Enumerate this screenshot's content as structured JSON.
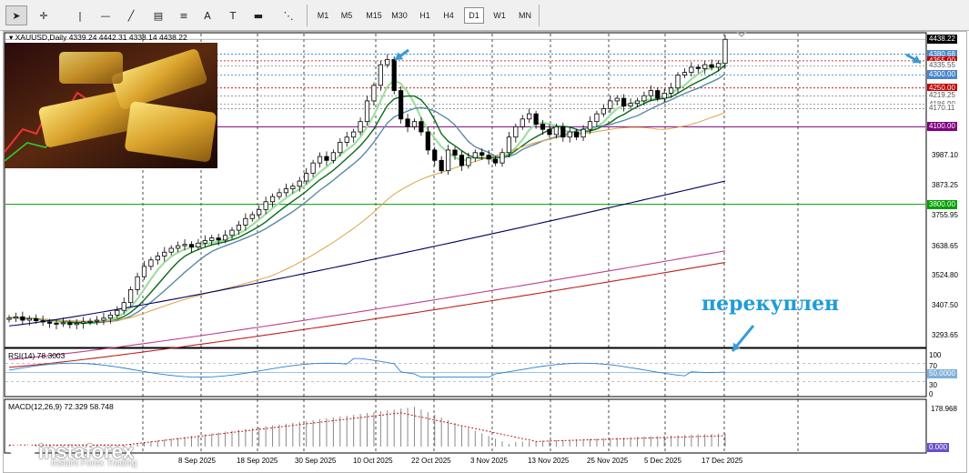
{
  "toolbar": {
    "tools": [
      {
        "name": "cursor-icon",
        "glyph": "➤"
      },
      {
        "name": "crosshair-icon",
        "glyph": "✛"
      },
      {
        "name": "vertical-line-icon",
        "glyph": "|"
      },
      {
        "name": "horizontal-line-icon",
        "glyph": "—"
      },
      {
        "name": "trendline-icon",
        "glyph": "╱"
      },
      {
        "name": "channel-icon",
        "glyph": "▤"
      },
      {
        "name": "fibonacci-icon",
        "glyph": "≡"
      },
      {
        "name": "text-icon",
        "glyph": "A"
      },
      {
        "name": "label-icon",
        "glyph": "T"
      },
      {
        "name": "rectangle-icon",
        "glyph": "▬"
      },
      {
        "name": "shapes-icon",
        "glyph": "⋱"
      }
    ],
    "timeframes": [
      "M1",
      "M5",
      "M15",
      "M30",
      "H1",
      "H4",
      "D1",
      "W1",
      "MN"
    ],
    "active_timeframe": "D1"
  },
  "header": {
    "symbol": "XAUUSD,Daily",
    "ohlc": "4339.24 4442.31 4338.14 4438.22"
  },
  "rsi": {
    "label": "RSI(14) 78.3003"
  },
  "macd": {
    "label": "MACD(12,26,9) 72.329 58.748"
  },
  "annotation": {
    "text": "перекуплен"
  },
  "logo": {
    "name": "instaforex",
    "tagline": "Instant Forex Trading"
  },
  "colors": {
    "bull": "#ffffff",
    "bear": "#000000",
    "level_red": "#c00000",
    "level_blue": "#1f4e9c",
    "level_green": "#00a000",
    "level_purple": "#800080",
    "arrow": "#3a9ad9"
  },
  "chart_data": {
    "type": "candlestick",
    "symbol": "XAUUSD",
    "timeframe": "Daily",
    "ylim": [
      3250,
      4460
    ],
    "x_labels": [
      "8 Sep 2025",
      "18 Sep 2025",
      "30 Sep 2025",
      "10 Oct 2025",
      "22 Oct 2025",
      "3 Nov 2025",
      "13 Nov 2025",
      "25 Nov 2025",
      "5 Dec 2025",
      "17 Dec 2025"
    ],
    "y_ticks": [
      3987.1,
      3873.25,
      3755.95,
      3638.65,
      3524.8,
      3407.5,
      3293.65
    ],
    "price_levels": [
      {
        "value": 4438.22,
        "label": "4438.22",
        "kind": "current"
      },
      {
        "value": 4380.68,
        "label": "4380.68",
        "kind": "blue"
      },
      {
        "value": 4355.0,
        "label": "4355.00",
        "kind": "red"
      },
      {
        "value": 4335.55,
        "label": "4335.55",
        "kind": "plain"
      },
      {
        "value": 4300.0,
        "label": "4300.00",
        "kind": "blue"
      },
      {
        "value": 4250.0,
        "label": "4250.00",
        "kind": "red"
      },
      {
        "value": 4219.25,
        "label": "4219.25",
        "kind": "plain"
      },
      {
        "value": 4186.9,
        "label": "4186.90",
        "kind": "plain"
      },
      {
        "value": 4170.11,
        "label": "4170.11",
        "kind": "plain"
      },
      {
        "value": 4100.0,
        "label": "4100.00",
        "kind": "purple"
      },
      {
        "value": 3800.0,
        "label": "3800.00",
        "kind": "green"
      }
    ],
    "candles_close": [
      3360,
      3365,
      3352,
      3358,
      3350,
      3345,
      3340,
      3338,
      3342,
      3335,
      3340,
      3345,
      3348,
      3352,
      3360,
      3372,
      3390,
      3420,
      3470,
      3520,
      3560,
      3585,
      3600,
      3615,
      3630,
      3640,
      3645,
      3635,
      3650,
      3660,
      3670,
      3662,
      3680,
      3700,
      3720,
      3745,
      3760,
      3780,
      3810,
      3830,
      3845,
      3860,
      3870,
      3890,
      3920,
      3960,
      3985,
      3970,
      4000,
      4040,
      4060,
      4080,
      4120,
      4200,
      4260,
      4340,
      4360,
      4240,
      4130,
      4100,
      4120,
      4080,
      4010,
      3970,
      3930,
      4010,
      3990,
      3950,
      3980,
      4000,
      3990,
      3975,
      3960,
      4000,
      4060,
      4100,
      4130,
      4150,
      4110,
      4090,
      4070,
      4100,
      4060,
      4080,
      4060,
      4090,
      4120,
      4150,
      4170,
      4200,
      4210,
      4180,
      4190,
      4200,
      4220,
      4240,
      4210,
      4230,
      4250,
      4300,
      4310,
      4330,
      4325,
      4340,
      4330,
      4345,
      4438
    ]
  }
}
